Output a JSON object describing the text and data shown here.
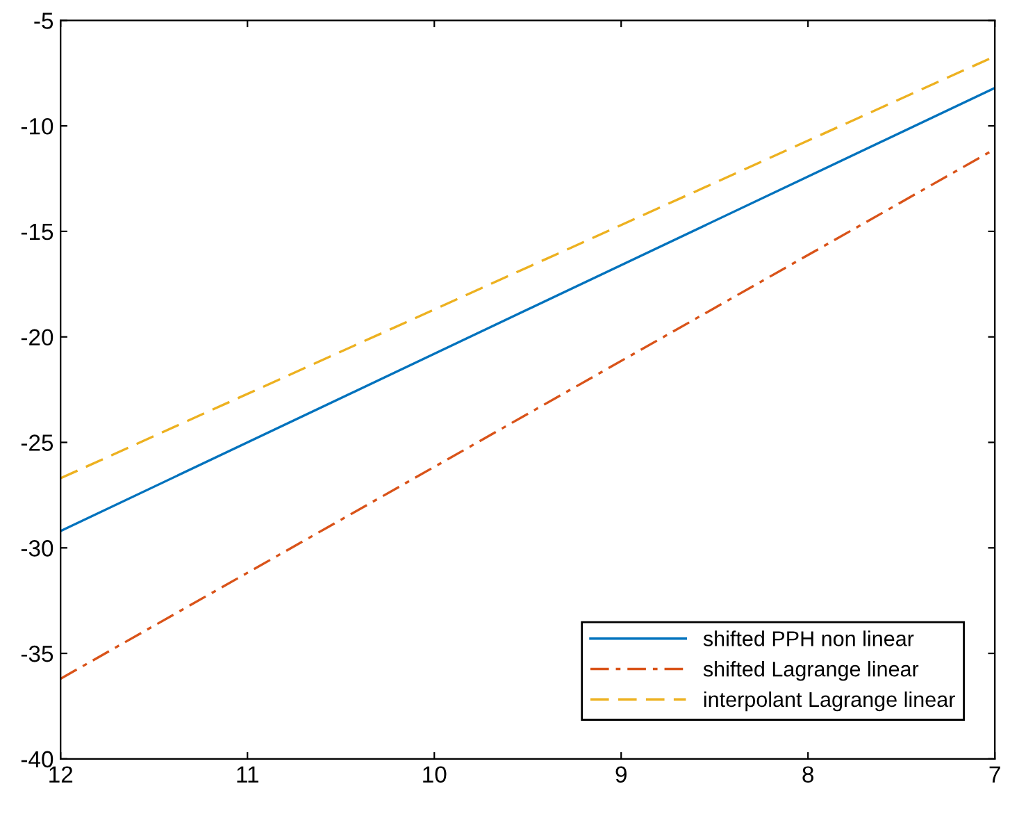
{
  "chart_data": {
    "type": "line",
    "x": [
      12,
      7
    ],
    "series": [
      {
        "name": "shifted PPH non linear",
        "color": "#0072bd",
        "values": [
          -29.2,
          -8.2
        ],
        "line_style": "solid"
      },
      {
        "name": "shifted Lagrange linear",
        "color": "#d95319",
        "values": [
          -36.2,
          -11.1
        ],
        "line_style": "dashdot"
      },
      {
        "name": "interpolant Lagrange linear",
        "color": "#edb120",
        "values": [
          -26.7,
          -6.7
        ],
        "line_style": "dashed"
      }
    ],
    "xlim": [
      12,
      7
    ],
    "xticks": [
      12,
      11,
      10,
      9,
      8,
      7
    ],
    "ylim": [
      -40,
      -5
    ],
    "yticks": [
      -40,
      -35,
      -30,
      -25,
      -20,
      -15,
      -10,
      -5
    ],
    "grid": false,
    "legend": "bottom right"
  }
}
